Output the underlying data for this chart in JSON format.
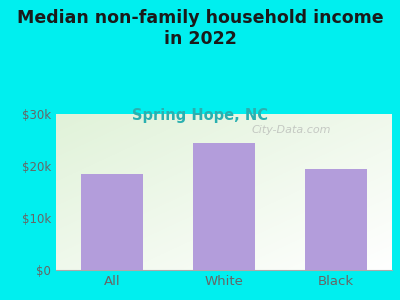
{
  "title": "Median non-family household income\nin 2022",
  "subtitle": "Spring Hope, NC",
  "categories": [
    "All",
    "White",
    "Black"
  ],
  "values": [
    18500,
    24500,
    19500
  ],
  "bar_color": "#b39ddb",
  "title_fontsize": 12.5,
  "subtitle_fontsize": 10.5,
  "subtitle_color": "#2ab0b0",
  "title_color": "#1a1a1a",
  "background_outer": "#00efef",
  "ylim": [
    0,
    30000
  ],
  "yticks": [
    0,
    10000,
    20000,
    30000
  ],
  "ytick_labels": [
    "$0",
    "$10k",
    "$20k",
    "$30k"
  ],
  "watermark": "City-Data.com",
  "tick_color": "#666666"
}
